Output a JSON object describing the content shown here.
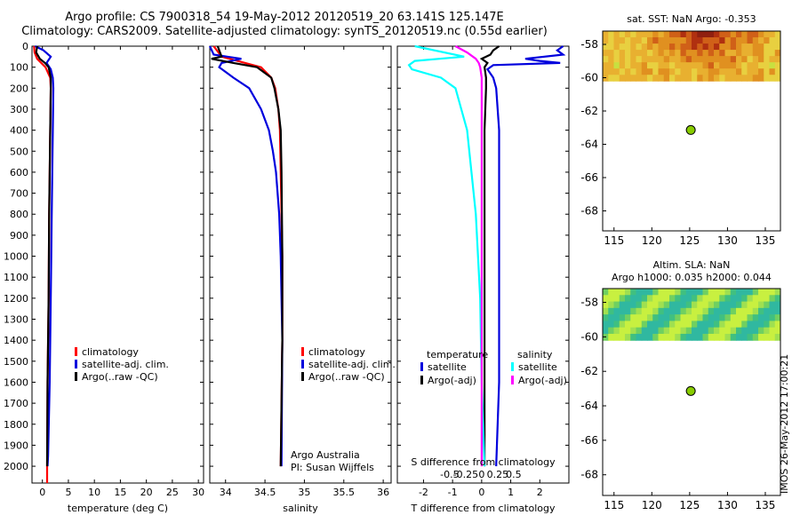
{
  "header": {
    "line1": "Argo profile: CS 7900318_54 19-May-2012 20120519_20 63.141S 125.147E",
    "line2": "Climatology: CARS2009. Satellite-adjusted climatology: synTS_20120519.nc (0.55d earlier)"
  },
  "stamp": "IMOS 26-May-2012 17:00:21",
  "colors": {
    "climatology": "#ff0000",
    "satellite_clim": "#0000dd",
    "argo": "#000000",
    "satellite_s": "#00ffff",
    "argo_s": "#ff00ff"
  },
  "chart_data": [
    {
      "id": "temperature",
      "type": "line",
      "xlabel": "temperature (deg C)",
      "xlim": [
        -2,
        31
      ],
      "xticks": [
        0,
        5,
        10,
        15,
        20,
        25,
        30
      ],
      "xtick_labels": [
        "0",
        "5",
        "10",
        "15",
        "20",
        "25",
        "30"
      ],
      "ylim": [
        2080,
        0
      ],
      "yticks": [
        0,
        100,
        200,
        300,
        400,
        500,
        600,
        700,
        800,
        900,
        1000,
        1100,
        1200,
        1300,
        1400,
        1500,
        1600,
        1700,
        1800,
        1900,
        2000
      ],
      "ytick_labels": [
        "0",
        "100",
        "200",
        "300",
        "400",
        "500",
        "600",
        "700",
        "800",
        "900",
        "1000",
        "1100",
        "1200",
        "1300",
        "1400",
        "1500",
        "1600",
        "1700",
        "1800",
        "1900",
        "2000"
      ],
      "legend": [
        "climatology",
        "satellite-adj. clim.",
        "Argo(..raw -QC)"
      ],
      "series": [
        {
          "name": "climatology",
          "color": "#ff0000",
          "depth": [
            0,
            30,
            60,
            100,
            150,
            200,
            400,
            800,
            1200,
            1600,
            2000,
            2080
          ],
          "values": [
            -1.6,
            -1.5,
            -1.0,
            0.6,
            1.5,
            1.6,
            1.5,
            1.3,
            1.2,
            1.0,
            0.9,
            0.9
          ]
        },
        {
          "name": "satellite-adj. clim.",
          "color": "#0000dd",
          "depth": [
            0,
            20,
            50,
            80,
            110,
            150,
            200,
            400,
            800,
            1200,
            1600,
            1950,
            2000
          ],
          "values": [
            -1.4,
            0.2,
            1.6,
            0.8,
            1.6,
            2.0,
            2.1,
            2.0,
            1.8,
            1.6,
            1.4,
            1.1,
            1.0
          ]
        },
        {
          "name": "Argo(..raw -QC)",
          "color": "#000000",
          "depth": [
            0,
            30,
            60,
            80,
            100,
            150,
            200,
            400,
            800,
            1200,
            1600,
            2000
          ],
          "values": [
            -1.0,
            -1.2,
            -0.5,
            0.5,
            1.2,
            1.6,
            1.6,
            1.5,
            1.3,
            1.2,
            1.0,
            0.9
          ]
        }
      ]
    },
    {
      "id": "salinity",
      "type": "line",
      "xlabel": "salinity",
      "xlim": [
        33.8,
        36.1
      ],
      "xticks": [
        34,
        34.5,
        35,
        35.5,
        36
      ],
      "xtick_labels": [
        "34",
        "34.5",
        "35",
        "35.5",
        "36"
      ],
      "ylim": [
        2080,
        0
      ],
      "legend": [
        "climatology",
        "satellite-adj. clim.",
        "Argo(..raw -QC)"
      ],
      "annotation": [
        "Argo Australia",
        "PI: Susan Wijffels"
      ],
      "series": [
        {
          "name": "climatology",
          "color": "#ff0000",
          "depth": [
            0,
            50,
            70,
            100,
            150,
            200,
            300,
            400,
            600,
            1000,
            1400,
            2000
          ],
          "values": [
            33.85,
            33.95,
            34.15,
            34.45,
            34.58,
            34.63,
            34.67,
            34.69,
            34.7,
            34.72,
            34.72,
            34.7
          ]
        },
        {
          "name": "satellite-adj. clim.",
          "color": "#0000dd",
          "depth": [
            0,
            40,
            60,
            80,
            100,
            150,
            200,
            300,
            400,
            500,
            600,
            800,
            1000,
            1400,
            2000
          ],
          "values": [
            33.8,
            33.85,
            34.2,
            33.95,
            33.92,
            34.1,
            34.3,
            34.45,
            34.55,
            34.6,
            34.64,
            34.68,
            34.7,
            34.72,
            34.71
          ]
        },
        {
          "name": "Argo(..raw -QC)",
          "color": "#000000",
          "depth": [
            0,
            50,
            60,
            80,
            100,
            150,
            200,
            300,
            400,
            600,
            1000,
            1400,
            2000
          ],
          "values": [
            33.9,
            33.95,
            33.82,
            34.1,
            34.4,
            34.58,
            34.62,
            34.67,
            34.7,
            34.71,
            34.72,
            34.72,
            34.7
          ]
        }
      ]
    },
    {
      "id": "difference",
      "type": "line",
      "xlabel": "T difference from climatology",
      "xlabel_top": "S difference from climatology",
      "xlim": [
        -2.9,
        3.0
      ],
      "xticks": [
        -2,
        -1,
        0,
        1,
        2
      ],
      "xtick_labels": [
        "-2",
        "-1",
        "0",
        "1",
        "2"
      ],
      "s_ticks": [
        -0.5,
        -0.25,
        0,
        0.25,
        0.5
      ],
      "s_tick_labels": [
        "-0.5",
        "-0.25",
        "0",
        "0.25",
        "0.5"
      ],
      "ylim": [
        2080,
        0
      ],
      "legend_temperature_title": "temperature",
      "legend_salinity_title": "salinity",
      "legend_temperature": [
        "satellite",
        "Argo(-adj)"
      ],
      "legend_salinity": [
        "satellite",
        "Argo(-adj)"
      ],
      "series": [
        {
          "name": "satellite",
          "color": "#0000dd",
          "depth": [
            0,
            20,
            40,
            60,
            70,
            80,
            90,
            110,
            150,
            200,
            400,
            800,
            1200,
            1600,
            2000
          ],
          "values": [
            2.8,
            2.6,
            2.8,
            1.5,
            2.0,
            2.7,
            0.4,
            0.2,
            0.4,
            0.5,
            0.6,
            0.6,
            0.6,
            0.6,
            0.5
          ]
        },
        {
          "name": "Argo(-adj)",
          "color": "#000000",
          "depth": [
            0,
            20,
            40,
            60,
            80,
            100,
            150,
            200,
            400,
            800,
            1200,
            1600,
            2000
          ],
          "values": [
            0.6,
            0.4,
            0.3,
            0.0,
            0.2,
            0.1,
            0.15,
            0.15,
            0.1,
            0.1,
            0.1,
            0.1,
            0.1
          ]
        },
        {
          "name": "satellite",
          "color": "#00ffff",
          "depth": [
            0,
            50,
            70,
            90,
            110,
            150,
            200,
            400,
            800,
            1200,
            1600,
            2000
          ],
          "values": [
            -2.3,
            -0.6,
            -2.3,
            -2.5,
            -2.4,
            -1.4,
            -0.9,
            -0.5,
            -0.2,
            -0.05,
            0.0,
            0.1
          ]
        },
        {
          "name": "Argo(-adj)",
          "color": "#ff00ff",
          "depth": [
            0,
            30,
            60,
            80,
            100,
            150,
            200,
            400,
            800,
            1200,
            1600,
            2000
          ],
          "values": [
            -0.9,
            -0.5,
            -0.2,
            -0.1,
            -0.05,
            0.0,
            0.0,
            0.0,
            0.0,
            0.0,
            0.0,
            0.0
          ]
        }
      ]
    },
    {
      "id": "sst_map",
      "type": "heatmap",
      "title": "sat. SST: NaN Argo: -0.353",
      "xlim": [
        113.5,
        137
      ],
      "ylim": [
        -69.2,
        -57.2
      ],
      "xticks": [
        115,
        120,
        125,
        130,
        135
      ],
      "xtick_labels": [
        "115",
        "120",
        "125",
        "130",
        "135"
      ],
      "yticks": [
        -58,
        -60,
        -62,
        -64,
        -66,
        -68
      ],
      "ytick_labels": [
        "-58",
        "-60",
        "-62",
        "-64",
        "-66",
        "-68"
      ],
      "data_lat_range": [
        -60.2,
        -57.2
      ],
      "palette": [
        "#e8d040",
        "#e8b030",
        "#e09020",
        "#d06018",
        "#b03010",
        "#902010",
        "#c8e040"
      ],
      "marker": {
        "lon": 125.147,
        "lat": -63.141,
        "color": "#88cc00"
      }
    },
    {
      "id": "sla_map",
      "type": "heatmap",
      "title": "Altim. SLA: NaN",
      "subtitle": "Argo h1000: 0.035 h2000: 0.044",
      "xlim": [
        113.5,
        137
      ],
      "ylim": [
        -69.2,
        -57.2
      ],
      "xticks": [
        115,
        120,
        125,
        130,
        135
      ],
      "xtick_labels": [
        "115",
        "120",
        "125",
        "130",
        "135"
      ],
      "yticks": [
        -58,
        -60,
        -62,
        -64,
        -66,
        -68
      ],
      "ytick_labels": [
        "-58",
        "-60",
        "-62",
        "-64",
        "-66",
        "-68"
      ],
      "data_lat_range": [
        -60.2,
        -57.2
      ],
      "palette": [
        "#30b8a0",
        "#40c080",
        "#70d060",
        "#a0e050",
        "#c8f040"
      ],
      "marker": {
        "lon": 125.147,
        "lat": -63.141,
        "color": "#88cc00"
      }
    }
  ]
}
